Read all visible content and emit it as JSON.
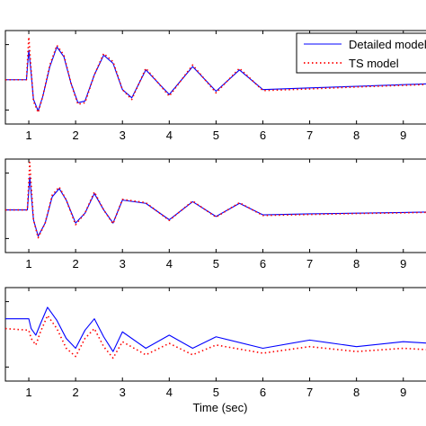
{
  "chart_data": [
    {
      "type": "line",
      "xlabel": "",
      "ylabel": "",
      "xlim": [
        0.5,
        9.6
      ],
      "ylim": [
        -1.35,
        1.5
      ],
      "xticks": [
        "1",
        "2",
        "3",
        "4",
        "5",
        "6",
        "7",
        "8",
        "9"
      ],
      "grid": false,
      "legend": {
        "placement": "top-right"
      },
      "series": [
        {
          "name": "Detailed model",
          "color": "#0000ff",
          "style": "solid",
          "x": [
            0.5,
            0.95,
            1.0,
            1.05,
            1.1,
            1.2,
            1.3,
            1.45,
            1.6,
            1.75,
            1.9,
            2.05,
            2.2,
            2.4,
            2.6,
            2.8,
            3.0,
            3.2,
            3.5,
            4.0,
            4.5,
            5.0,
            5.5,
            6.0,
            7.0,
            8.0,
            9.0,
            9.6
          ],
          "y": [
            0,
            0,
            0.9,
            0.2,
            -0.6,
            -0.95,
            -0.5,
            0.4,
            1.0,
            0.7,
            -0.1,
            -0.7,
            -0.65,
            0.15,
            0.75,
            0.5,
            -0.3,
            -0.55,
            0.3,
            -0.45,
            0.4,
            -0.35,
            0.3,
            -0.3,
            -0.25,
            -0.2,
            -0.15,
            -0.12
          ]
        },
        {
          "name": "TS model",
          "color": "#ff0000",
          "style": "dotted",
          "x": [
            0.5,
            0.95,
            1.0,
            1.05,
            1.1,
            1.2,
            1.3,
            1.45,
            1.6,
            1.75,
            1.9,
            2.05,
            2.2,
            2.4,
            2.6,
            2.8,
            3.0,
            3.2,
            3.5,
            4.0,
            4.5,
            5.0,
            5.5,
            6.0,
            7.0,
            8.0,
            9.0,
            9.6
          ],
          "y": [
            0,
            0,
            1.3,
            0.3,
            -0.65,
            -1.0,
            -0.5,
            0.45,
            1.05,
            0.75,
            -0.1,
            -0.75,
            -0.7,
            0.15,
            0.8,
            0.55,
            -0.3,
            -0.6,
            0.35,
            -0.5,
            0.45,
            -0.4,
            0.35,
            -0.33,
            -0.28,
            -0.22,
            -0.17,
            -0.14
          ]
        }
      ]
    },
    {
      "type": "line",
      "xlabel": "",
      "ylabel": "",
      "xlim": [
        0.5,
        9.6
      ],
      "ylim": [
        -1.3,
        1.55
      ],
      "xticks": [
        "1",
        "2",
        "3",
        "4",
        "5",
        "6",
        "7",
        "8",
        "9"
      ],
      "grid": false,
      "series": [
        {
          "color": "#0000ff",
          "style": "solid",
          "x": [
            0.5,
            0.97,
            1.02,
            1.1,
            1.2,
            1.35,
            1.5,
            1.65,
            1.8,
            2.0,
            2.2,
            2.4,
            2.6,
            2.8,
            3.0,
            3.5,
            4.0,
            4.5,
            5.0,
            5.5,
            6.0,
            7.0,
            8.0,
            9.0,
            9.6
          ],
          "y": [
            0,
            0,
            1.0,
            -0.3,
            -0.8,
            -0.4,
            0.4,
            0.65,
            0.3,
            -0.4,
            -0.1,
            0.5,
            0.0,
            -0.4,
            0.3,
            0.2,
            -0.3,
            0.25,
            -0.2,
            0.2,
            -0.15,
            -0.12,
            -0.1,
            -0.08,
            -0.06
          ]
        },
        {
          "color": "#ff0000",
          "style": "dotted",
          "x": [
            0.5,
            0.97,
            1.02,
            1.1,
            1.2,
            1.35,
            1.5,
            1.65,
            1.8,
            2.0,
            2.2,
            2.4,
            2.6,
            2.8,
            3.0,
            3.5,
            4.0,
            4.5,
            5.0,
            5.5,
            6.0,
            7.0,
            8.0,
            9.0,
            9.6
          ],
          "y": [
            0,
            0,
            1.45,
            -0.3,
            -0.85,
            -0.4,
            0.45,
            0.7,
            0.3,
            -0.45,
            -0.1,
            0.55,
            0.0,
            -0.42,
            0.32,
            0.22,
            -0.32,
            0.27,
            -0.22,
            0.22,
            -0.17,
            -0.14,
            -0.11,
            -0.09,
            -0.07
          ]
        }
      ]
    },
    {
      "type": "line",
      "xlabel": "Time (sec)",
      "ylabel": "",
      "xlim": [
        0.5,
        9.6
      ],
      "ylim": [
        -1.9,
        0.95
      ],
      "xticks": [
        "1",
        "2",
        "3",
        "4",
        "5",
        "6",
        "7",
        "8",
        "9"
      ],
      "grid": false,
      "series": [
        {
          "color": "#0000ff",
          "style": "solid",
          "x": [
            0.5,
            1.0,
            1.05,
            1.15,
            1.25,
            1.4,
            1.6,
            1.8,
            2.0,
            2.2,
            2.4,
            2.6,
            2.8,
            3.0,
            3.5,
            4.0,
            4.5,
            5.0,
            6.0,
            7.0,
            8.0,
            9.0,
            9.6
          ],
          "y": [
            0,
            0,
            -0.3,
            -0.5,
            -0.15,
            0.35,
            -0.05,
            -0.6,
            -0.9,
            -0.35,
            0.0,
            -0.55,
            -1.0,
            -0.4,
            -0.9,
            -0.5,
            -0.9,
            -0.55,
            -0.9,
            -0.65,
            -0.85,
            -0.7,
            -0.75
          ]
        },
        {
          "color": "#ff0000",
          "style": "dotted",
          "x": [
            0.5,
            1.0,
            1.05,
            1.15,
            1.25,
            1.4,
            1.6,
            1.8,
            2.0,
            2.2,
            2.4,
            2.6,
            2.8,
            3.0,
            3.5,
            4.0,
            4.5,
            5.0,
            6.0,
            7.0,
            8.0,
            9.0,
            9.6
          ],
          "y": [
            -0.3,
            -0.35,
            -0.6,
            -0.8,
            -0.4,
            0.1,
            -0.3,
            -0.9,
            -1.15,
            -0.6,
            -0.3,
            -0.85,
            -1.2,
            -0.7,
            -1.1,
            -0.75,
            -1.1,
            -0.8,
            -1.05,
            -0.85,
            -1.0,
            -0.9,
            -0.95
          ]
        }
      ]
    }
  ],
  "legend_entries": [
    {
      "label": "Detailed model",
      "color": "#0000ff",
      "style": "solid"
    },
    {
      "label": "TS model",
      "color": "#ff0000",
      "style": "dotted"
    }
  ]
}
